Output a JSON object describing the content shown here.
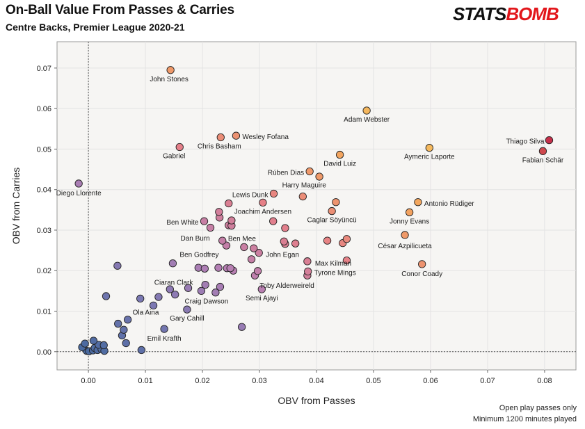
{
  "header": {
    "title": "On-Ball Value From Passes & Carries",
    "subtitle": "Centre Backs, Premier League 2020-21",
    "logo_part1": "STATS",
    "logo_part2": "BOMB",
    "logo_colors": [
      "#111111",
      "#e2161b"
    ]
  },
  "footer": {
    "line1": "Open play passes only",
    "line2": "Minimum 1200 minutes played"
  },
  "chart_data": {
    "type": "scatter",
    "xlabel": "OBV from Passes",
    "ylabel": "OBV from Carries",
    "xlim": [
      -0.0055,
      0.0855
    ],
    "ylim": [
      -0.0045,
      0.0765
    ],
    "xticks": [
      0.0,
      0.01,
      0.02,
      0.03,
      0.04,
      0.05,
      0.06,
      0.07,
      0.08
    ],
    "yticks": [
      0.0,
      0.01,
      0.02,
      0.03,
      0.04,
      0.05,
      0.06,
      0.07
    ],
    "xtick_labels": [
      "0.00",
      "0.01",
      "0.02",
      "0.03",
      "0.04",
      "0.05",
      "0.06",
      "0.07",
      "0.08"
    ],
    "ytick_labels": [
      "0.00",
      "0.01",
      "0.02",
      "0.03",
      "0.04",
      "0.05",
      "0.06",
      "0.07"
    ],
    "grid": true,
    "zero_lines": true,
    "color_scale": [
      "#4a6aa0",
      "#7a78b2",
      "#b67fb4",
      "#e57f89",
      "#f2a060",
      "#f5ba5e",
      "#c6304a"
    ],
    "points": [
      {
        "x": 0.0144,
        "y": 0.0695,
        "label": "John Stones"
      },
      {
        "x": 0.0488,
        "y": 0.0595,
        "label": "Adam Webster"
      },
      {
        "x": 0.0808,
        "y": 0.0522,
        "label": "Thiago Silva"
      },
      {
        "x": 0.0797,
        "y": 0.0495,
        "label": "Fabian Schär"
      },
      {
        "x": 0.0598,
        "y": 0.0503,
        "label": "Aymeric Laporte"
      },
      {
        "x": 0.0259,
        "y": 0.0533,
        "label": "Wesley Fofana"
      },
      {
        "x": 0.0232,
        "y": 0.0529,
        "label": "Chris Basham"
      },
      {
        "x": 0.016,
        "y": 0.0505,
        "label": "Gabriel"
      },
      {
        "x": 0.0441,
        "y": 0.0486,
        "label": "David Luiz"
      },
      {
        "x": 0.0388,
        "y": 0.0445,
        "label": "Rúben Dias"
      },
      {
        "x": 0.0405,
        "y": 0.0432,
        "label": ""
      },
      {
        "x": -0.0017,
        "y": 0.0415,
        "label": "Diego Llorente"
      },
      {
        "x": 0.0325,
        "y": 0.039,
        "label": "Lewis Dunk"
      },
      {
        "x": 0.0376,
        "y": 0.0383,
        "label": "Harry Maguire"
      },
      {
        "x": 0.0434,
        "y": 0.0369,
        "label": ""
      },
      {
        "x": 0.0578,
        "y": 0.0369,
        "label": "Antonio Rüdiger"
      },
      {
        "x": 0.0246,
        "y": 0.0366,
        "label": ""
      },
      {
        "x": 0.0306,
        "y": 0.0368,
        "label": "Joachim Andersen"
      },
      {
        "x": 0.0229,
        "y": 0.0345,
        "label": ""
      },
      {
        "x": 0.0427,
        "y": 0.0347,
        "label": "Caglar Söyüncü"
      },
      {
        "x": 0.0563,
        "y": 0.0344,
        "label": "Jonny Evans"
      },
      {
        "x": 0.023,
        "y": 0.0331,
        "label": ""
      },
      {
        "x": 0.0251,
        "y": 0.0324,
        "label": ""
      },
      {
        "x": 0.0203,
        "y": 0.0322,
        "label": "Ben White"
      },
      {
        "x": 0.0324,
        "y": 0.0322,
        "label": ""
      },
      {
        "x": 0.0246,
        "y": 0.0312,
        "label": ""
      },
      {
        "x": 0.0251,
        "y": 0.0311,
        "label": ""
      },
      {
        "x": 0.0214,
        "y": 0.0306,
        "label": ""
      },
      {
        "x": 0.0345,
        "y": 0.0305,
        "label": ""
      },
      {
        "x": 0.0555,
        "y": 0.0288,
        "label": "César Azpilicueta"
      },
      {
        "x": 0.0235,
        "y": 0.0274,
        "label": "Dan Burn"
      },
      {
        "x": 0.0343,
        "y": 0.0272,
        "label": ""
      },
      {
        "x": 0.0419,
        "y": 0.0274,
        "label": ""
      },
      {
        "x": 0.0453,
        "y": 0.0278,
        "label": ""
      },
      {
        "x": 0.0345,
        "y": 0.0266,
        "label": ""
      },
      {
        "x": 0.0363,
        "y": 0.0267,
        "label": ""
      },
      {
        "x": 0.0446,
        "y": 0.0268,
        "label": ""
      },
      {
        "x": 0.0242,
        "y": 0.0262,
        "label": ""
      },
      {
        "x": 0.0273,
        "y": 0.0258,
        "label": "Ben Mee"
      },
      {
        "x": 0.029,
        "y": 0.0255,
        "label": ""
      },
      {
        "x": 0.0299,
        "y": 0.0244,
        "label": "John Egan"
      },
      {
        "x": 0.0286,
        "y": 0.0228,
        "label": ""
      },
      {
        "x": 0.0384,
        "y": 0.0223,
        "label": "Max Kilman"
      },
      {
        "x": 0.0453,
        "y": 0.0225,
        "label": ""
      },
      {
        "x": 0.0585,
        "y": 0.0216,
        "label": "Conor Coady"
      },
      {
        "x": 0.0148,
        "y": 0.0218,
        "label": "Ben Godfrey"
      },
      {
        "x": 0.0193,
        "y": 0.0207,
        "label": ""
      },
      {
        "x": 0.0204,
        "y": 0.0205,
        "label": ""
      },
      {
        "x": 0.0228,
        "y": 0.0207,
        "label": ""
      },
      {
        "x": 0.0243,
        "y": 0.0206,
        "label": ""
      },
      {
        "x": 0.0249,
        "y": 0.0206,
        "label": ""
      },
      {
        "x": 0.0254,
        "y": 0.02,
        "label": ""
      },
      {
        "x": 0.0385,
        "y": 0.0198,
        "label": "Tyrone Mings"
      },
      {
        "x": 0.0384,
        "y": 0.0188,
        "label": ""
      },
      {
        "x": 0.0297,
        "y": 0.0199,
        "label": ""
      },
      {
        "x": 0.0292,
        "y": 0.0188,
        "label": "Toby Alderweireld"
      },
      {
        "x": 0.0051,
        "y": 0.0212,
        "label": ""
      },
      {
        "x": 0.0175,
        "y": 0.0157,
        "label": "Ciaran Clark"
      },
      {
        "x": 0.0143,
        "y": 0.0154,
        "label": ""
      },
      {
        "x": 0.0205,
        "y": 0.0165,
        "label": ""
      },
      {
        "x": 0.0231,
        "y": 0.016,
        "label": ""
      },
      {
        "x": 0.0198,
        "y": 0.015,
        "label": ""
      },
      {
        "x": 0.0223,
        "y": 0.0146,
        "label": "Craig Dawson"
      },
      {
        "x": 0.0152,
        "y": 0.0141,
        "label": ""
      },
      {
        "x": 0.0304,
        "y": 0.0154,
        "label": "Semi Ajayi"
      },
      {
        "x": 0.0031,
        "y": 0.0137,
        "label": ""
      },
      {
        "x": 0.0091,
        "y": 0.0131,
        "label": ""
      },
      {
        "x": 0.0123,
        "y": 0.0135,
        "label": ""
      },
      {
        "x": 0.0114,
        "y": 0.0114,
        "label": "Ola Aina"
      },
      {
        "x": 0.0173,
        "y": 0.0104,
        "label": "Gary Cahill"
      },
      {
        "x": 0.0069,
        "y": 0.0079,
        "label": ""
      },
      {
        "x": 0.0052,
        "y": 0.0069,
        "label": ""
      },
      {
        "x": 0.0062,
        "y": 0.0054,
        "label": ""
      },
      {
        "x": 0.0059,
        "y": 0.004,
        "label": ""
      },
      {
        "x": 0.0133,
        "y": 0.0056,
        "label": "Emil Krafth"
      },
      {
        "x": 0.0269,
        "y": 0.0061,
        "label": ""
      },
      {
        "x": 0.0066,
        "y": 0.0021,
        "label": ""
      },
      {
        "x": 0.0093,
        "y": 0.0004,
        "label": ""
      },
      {
        "x": -0.0011,
        "y": 0.0011,
        "label": ""
      },
      {
        "x": -0.0006,
        "y": 0.002,
        "label": ""
      },
      {
        "x": -0.0003,
        "y": 0.0002,
        "label": ""
      },
      {
        "x": 0.0001,
        "y": 0.0001,
        "label": ""
      },
      {
        "x": 0.0009,
        "y": 0.0027,
        "label": ""
      },
      {
        "x": 0.0011,
        "y": 0.0009,
        "label": ""
      },
      {
        "x": 0.0016,
        "y": 0.0004,
        "label": ""
      },
      {
        "x": 0.0018,
        "y": 0.0017,
        "label": ""
      },
      {
        "x": 0.0023,
        "y": 0.0006,
        "label": ""
      },
      {
        "x": 0.0027,
        "y": 0.0016,
        "label": ""
      },
      {
        "x": 0.0028,
        "y": 0.0002,
        "label": ""
      },
      {
        "x": 0.0008,
        "y": 0.0003,
        "label": ""
      }
    ]
  }
}
